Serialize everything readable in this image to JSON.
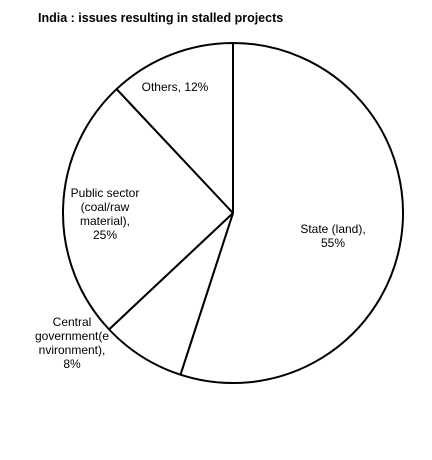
{
  "chart_data": {
    "type": "pie",
    "title": "India : issues resulting in stalled projects",
    "labels": [
      [
        "State (land),",
        "55%"
      ],
      [
        "Central",
        "government(e",
        "nvironment),",
        "8%"
      ],
      [
        "Public sector",
        "(coal/raw",
        "material),",
        "25%"
      ],
      [
        "Others, 12%"
      ]
    ],
    "values": [
      55,
      8,
      25,
      12
    ],
    "color": "#ffffff",
    "edge_color": "#000000"
  }
}
